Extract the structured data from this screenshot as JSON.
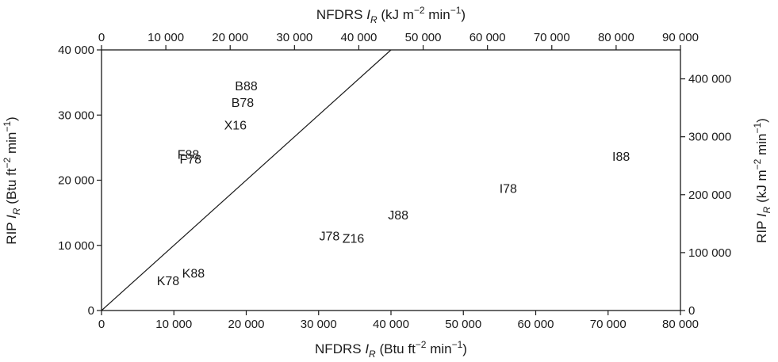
{
  "chart_data": {
    "type": "scatter",
    "title": "",
    "xlabel": {
      "pre": "NFDRS ",
      "sym": "I",
      "sub": "R",
      "unit_a": " (Btu ft",
      "sup": "−2",
      "unit_b": " min",
      "sup2": "−1",
      "close": ")"
    },
    "ylabel": {
      "pre": "RIP ",
      "sym": "I",
      "sub": "R",
      "unit_a": " (Btu ft",
      "sup": "−2",
      "unit_b": " min",
      "sup2": "−1",
      "close": ")"
    },
    "x2label": {
      "pre": "NFDRS ",
      "sym": "I",
      "sub": "R",
      "unit_a": " (kJ m",
      "sup": "−2",
      "unit_b": " min",
      "sup2": "−1",
      "close": ")"
    },
    "y2label": {
      "pre": "RIP ",
      "sym": "I",
      "sub": "R",
      "unit_a": " (kJ m",
      "sup": "−2",
      "unit_b": " min",
      "sup2": "−1",
      "close": ")"
    },
    "xlim": [
      0,
      80000
    ],
    "ylim": [
      0,
      40000
    ],
    "x2lim": [
      0,
      90000
    ],
    "y2lim": [
      0,
      450000
    ],
    "xticks": [
      "0",
      "10 000",
      "20 000",
      "30 000",
      "40 000",
      "50 000",
      "60 000",
      "70 000",
      "80 000"
    ],
    "yticks": [
      "0",
      "10 000",
      "20 000",
      "30 000",
      "40 000"
    ],
    "x2ticks": [
      "0",
      "10 000",
      "20 000",
      "30 000",
      "40 000",
      "50 000",
      "60 000",
      "70 000",
      "80 000",
      "90 000"
    ],
    "y2ticks": [
      "0",
      "100 000",
      "200 000",
      "300 000",
      "400 000"
    ],
    "xtick_values": [
      0,
      10000,
      20000,
      30000,
      40000,
      50000,
      60000,
      70000,
      80000
    ],
    "ytick_values": [
      0,
      10000,
      20000,
      30000,
      40000
    ],
    "x2tick_values": [
      0,
      10000,
      20000,
      30000,
      40000,
      50000,
      60000,
      70000,
      80000,
      90000
    ],
    "y2tick_values": [
      0,
      100000,
      200000,
      300000,
      400000
    ],
    "reference_line": {
      "x": [
        0,
        40000
      ],
      "y": [
        0,
        40000
      ]
    },
    "grid": false,
    "points": [
      {
        "label": "B88",
        "x": 20000,
        "y": 34500
      },
      {
        "label": "B78",
        "x": 19500,
        "y": 32000
      },
      {
        "label": "X16",
        "x": 18500,
        "y": 28500
      },
      {
        "label": "F88",
        "x": 12000,
        "y": 24000
      },
      {
        "label": "F78",
        "x": 12300,
        "y": 23300
      },
      {
        "label": "I88",
        "x": 71800,
        "y": 23700
      },
      {
        "label": "I78",
        "x": 56200,
        "y": 18800
      },
      {
        "label": "J88",
        "x": 41000,
        "y": 14700
      },
      {
        "label": "J78",
        "x": 31500,
        "y": 11500
      },
      {
        "label": "Z16",
        "x": 34800,
        "y": 11100
      },
      {
        "label": "K88",
        "x": 12700,
        "y": 5800
      },
      {
        "label": "K78",
        "x": 9200,
        "y": 4600
      }
    ]
  }
}
